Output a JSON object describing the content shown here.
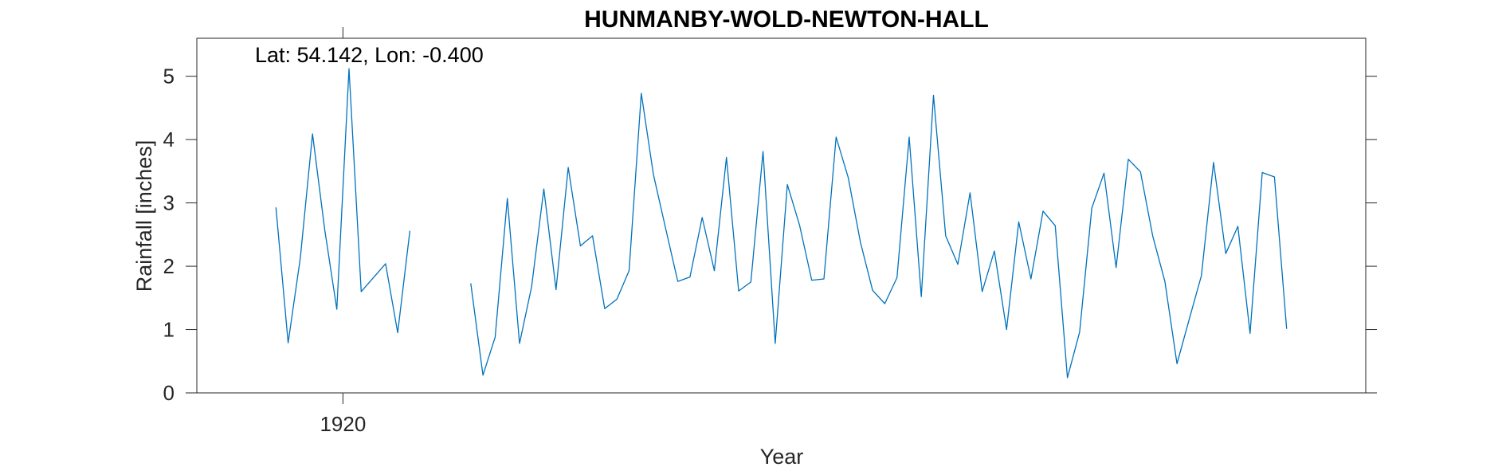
{
  "chart_data": {
    "type": "line",
    "title": "HUNMANBY-WOLD-NEWTON-HALL",
    "xlabel": "Year",
    "ylabel": "Rainfall [inches]",
    "annotation": "Lat: 54.142, Lon: -0.400",
    "xlim": [
      1908,
      2004
    ],
    "ylim": [
      0,
      5.6
    ],
    "x_ticks": [
      1920
    ],
    "x_tick_labels": [
      "1920"
    ],
    "y_ticks": [
      0,
      1,
      2,
      3,
      4,
      5
    ],
    "y_tick_labels": [
      "0",
      "1",
      "2",
      "3",
      "4",
      "5"
    ],
    "grid": false,
    "line_color": "#0072bd",
    "series": [
      {
        "segments": [
          {
            "x": [
              1914.5,
              1915.5,
              1916.5,
              1917.5,
              1918.5,
              1919.5,
              1920.5,
              1921.5,
              1922.5,
              1923.5,
              1924.5,
              1925.5
            ],
            "y": [
              2.93,
              0.79,
              2.13,
              4.09,
              2.58,
              1.32,
              5.12,
              1.6,
              1.82,
              2.04,
              0.95,
              2.56
            ]
          },
          {
            "x": [
              1930.5,
              1931.5,
              1932.5,
              1933.5,
              1934.5,
              1935.5,
              1936.5,
              1937.5,
              1938.5,
              1939.5,
              1940.5,
              1941.5,
              1942.5,
              1943.5,
              1944.5,
              1945.5,
              1946.5,
              1947.5,
              1948.5,
              1949.5,
              1950.5,
              1951.5,
              1952.5,
              1953.5,
              1954.5,
              1955.5,
              1956.5,
              1957.5,
              1958.5,
              1959.5,
              1960.5,
              1961.5,
              1962.5,
              1963.5,
              1964.5,
              1965.5,
              1966.5,
              1967.5,
              1968.5,
              1969.5,
              1970.5,
              1971.5,
              1972.5,
              1973.5,
              1974.5,
              1975.5,
              1976.5,
              1977.5,
              1978.5,
              1979.5,
              1980.5,
              1981.5,
              1982.5,
              1983.5,
              1984.5,
              1985.5,
              1986.5,
              1987.5,
              1988.5,
              1989.5,
              1990.5,
              1991.5,
              1992.5,
              1993.5,
              1994.5,
              1995.5,
              1996.5,
              1997.5
            ],
            "y": [
              1.73,
              0.28,
              0.88,
              3.07,
              0.78,
              1.68,
              3.22,
              1.63,
              3.56,
              2.32,
              2.48,
              1.33,
              1.48,
              1.93,
              4.73,
              3.45,
              2.6,
              1.76,
              1.83,
              2.77,
              1.93,
              3.72,
              1.61,
              1.75,
              3.81,
              0.78,
              3.29,
              2.65,
              1.78,
              1.8,
              4.04,
              3.4,
              2.38,
              1.62,
              1.41,
              1.82,
              4.04,
              1.52,
              4.7,
              2.48,
              2.03,
              3.16,
              1.6,
              2.24,
              1.0,
              2.7,
              1.8,
              2.87,
              2.64,
              0.24,
              0.96,
              2.92,
              3.47,
              1.98,
              3.69,
              3.49,
              2.48,
              1.76,
              0.46,
              1.16,
              1.85,
              3.64,
              2.2,
              2.63,
              0.94,
              3.48,
              3.41,
              1.01
            ]
          }
        ]
      }
    ]
  }
}
